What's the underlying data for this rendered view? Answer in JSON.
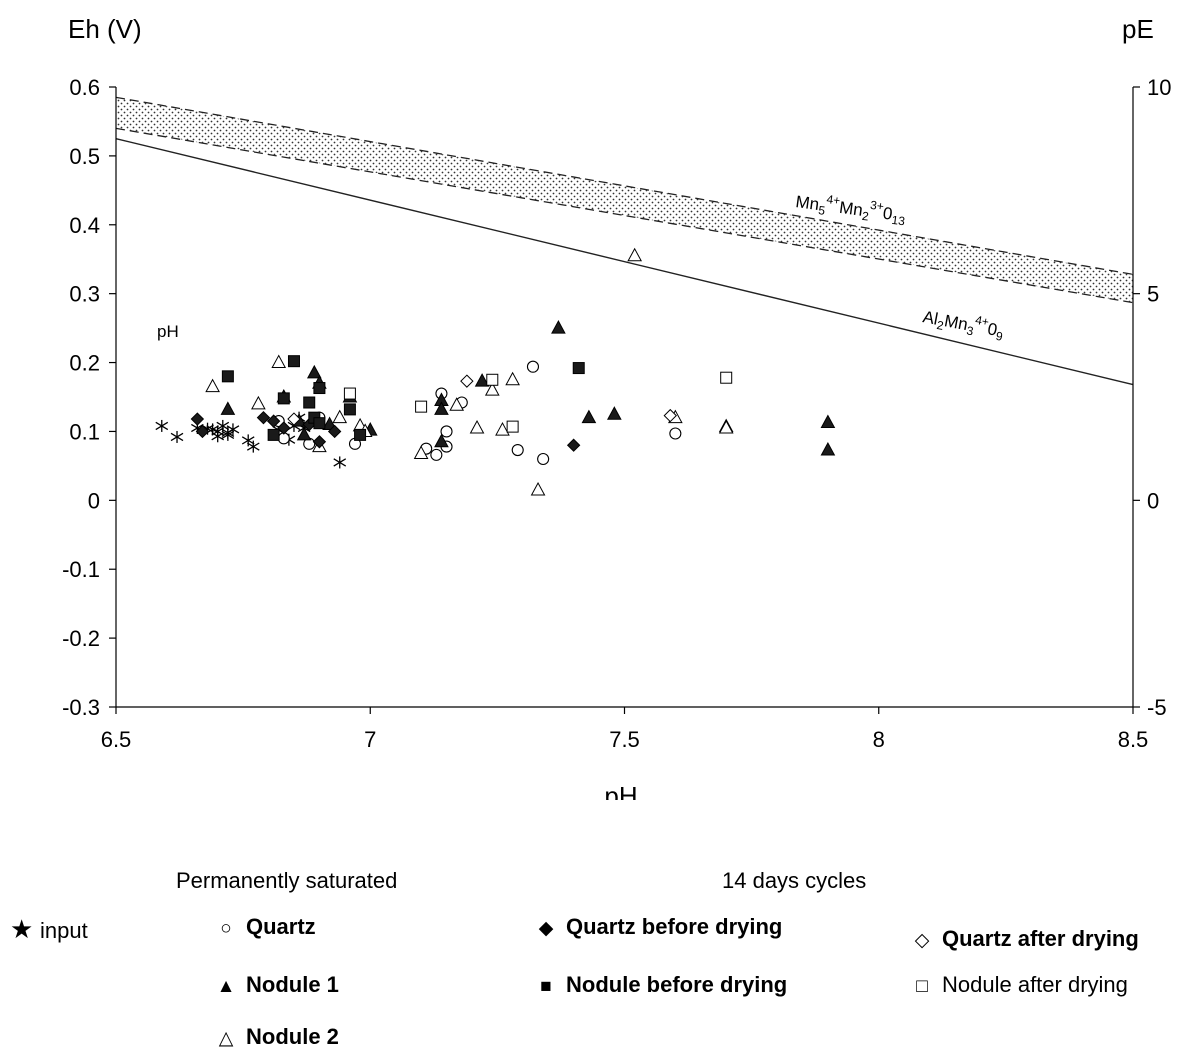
{
  "chart_data": {
    "type": "scatter",
    "xlabel": "pH",
    "ylabel_left": "Eh (V)",
    "ylabel_right": "pE",
    "xlim": [
      6.5,
      8.5
    ],
    "ylim": [
      -0.3,
      0.6
    ],
    "pe_lim": [
      -5,
      10
    ],
    "x_ticks": [
      "6.5",
      "7",
      "7.5",
      "8",
      "8.5"
    ],
    "y_ticks": [
      "-0.3",
      "-0.2",
      "-0.1",
      "0",
      "0.1",
      "0.2",
      "0.3",
      "0.4",
      "0.5",
      "0.6"
    ],
    "pe_ticks": [
      "-5",
      "0",
      "5",
      "10"
    ],
    "plot_annotation": "pH",
    "lines": [
      {
        "name": "Al2Mn3(4+)O9",
        "x": [
          6.5,
          8.5
        ],
        "y": [
          0.525,
          0.168
        ]
      },
      {
        "name": "Mn5(4+)Mn2(3+)O13 upper",
        "x": [
          6.5,
          8.5
        ],
        "y": [
          0.585,
          0.328
        ]
      },
      {
        "name": "Mn5(4+)Mn2(3+)O13 lower",
        "x": [
          6.5,
          8.5
        ],
        "y": [
          0.54,
          0.287
        ]
      }
    ],
    "line_labels": {
      "mn": {
        "a": "Mn",
        "s1": "5",
        "p1": "4+",
        "b": "Mn",
        "s2": "2",
        "p2": "3+",
        "c": "0",
        "s3": "13"
      },
      "al": {
        "a": "Al",
        "s1": "2",
        "b": "Mn",
        "s2": "3",
        "p2": "4+",
        "c": "0",
        "s3": "9"
      }
    },
    "series": [
      {
        "name": "input",
        "marker": "asterisk",
        "points": [
          [
            6.59,
            0.108
          ],
          [
            6.62,
            0.092
          ],
          [
            6.66,
            0.105
          ],
          [
            6.68,
            0.104
          ],
          [
            6.69,
            0.103
          ],
          [
            6.7,
            0.1
          ],
          [
            6.7,
            0.093
          ],
          [
            6.71,
            0.108
          ],
          [
            6.72,
            0.095
          ],
          [
            6.72,
            0.098
          ],
          [
            6.73,
            0.103
          ],
          [
            6.76,
            0.087
          ],
          [
            6.77,
            0.078
          ],
          [
            6.82,
            0.102
          ],
          [
            6.84,
            0.088
          ],
          [
            6.85,
            0.108
          ],
          [
            6.86,
            0.12
          ],
          [
            6.87,
            0.105
          ],
          [
            6.94,
            0.055
          ]
        ]
      },
      {
        "name": "Quartz",
        "marker": "circle-open",
        "points": [
          [
            6.82,
            0.115
          ],
          [
            6.83,
            0.09
          ],
          [
            6.88,
            0.082
          ],
          [
            6.9,
            0.12
          ],
          [
            6.97,
            0.082
          ],
          [
            7.11,
            0.075
          ],
          [
            7.13,
            0.066
          ],
          [
            7.14,
            0.155
          ],
          [
            7.15,
            0.1
          ],
          [
            7.15,
            0.078
          ],
          [
            7.18,
            0.142
          ],
          [
            7.29,
            0.073
          ],
          [
            7.32,
            0.194
          ],
          [
            7.34,
            0.06
          ],
          [
            7.6,
            0.097
          ]
        ]
      },
      {
        "name": "Nodule 1",
        "marker": "triangle-filled",
        "points": [
          [
            6.72,
            0.132
          ],
          [
            6.83,
            0.15
          ],
          [
            6.86,
            0.115
          ],
          [
            6.87,
            0.095
          ],
          [
            6.89,
            0.185
          ],
          [
            6.9,
            0.17
          ],
          [
            6.92,
            0.11
          ],
          [
            6.96,
            0.15
          ],
          [
            7.0,
            0.102
          ],
          [
            7.14,
            0.085
          ],
          [
            7.14,
            0.145
          ],
          [
            7.14,
            0.132
          ],
          [
            7.22,
            0.173
          ],
          [
            7.37,
            0.25
          ],
          [
            7.43,
            0.12
          ],
          [
            7.48,
            0.125
          ],
          [
            7.7,
            0.107
          ],
          [
            7.9,
            0.113
          ],
          [
            7.9,
            0.073
          ]
        ]
      },
      {
        "name": "Nodule 2",
        "marker": "triangle-open",
        "points": [
          [
            6.69,
            0.165
          ],
          [
            6.78,
            0.14
          ],
          [
            6.82,
            0.2
          ],
          [
            6.9,
            0.078
          ],
          [
            6.94,
            0.12
          ],
          [
            6.98,
            0.108
          ],
          [
            6.99,
            0.1
          ],
          [
            7.1,
            0.068
          ],
          [
            7.17,
            0.138
          ],
          [
            7.21,
            0.105
          ],
          [
            7.24,
            0.16
          ],
          [
            7.26,
            0.102
          ],
          [
            7.28,
            0.175
          ],
          [
            7.33,
            0.015
          ],
          [
            7.52,
            0.355
          ],
          [
            7.6,
            0.12
          ],
          [
            7.7,
            0.105
          ]
        ]
      },
      {
        "name": "Quartz before drying",
        "marker": "diamond-filled",
        "points": [
          [
            6.66,
            0.118
          ],
          [
            6.67,
            0.1
          ],
          [
            6.79,
            0.12
          ],
          [
            6.81,
            0.115
          ],
          [
            6.83,
            0.105
          ],
          [
            6.88,
            0.11
          ],
          [
            6.9,
            0.085
          ],
          [
            6.93,
            0.1
          ],
          [
            7.4,
            0.08
          ]
        ]
      },
      {
        "name": "Nodule before drying",
        "marker": "square-filled",
        "points": [
          [
            6.72,
            0.18
          ],
          [
            6.81,
            0.095
          ],
          [
            6.83,
            0.148
          ],
          [
            6.85,
            0.202
          ],
          [
            6.88,
            0.142
          ],
          [
            6.89,
            0.12
          ],
          [
            6.9,
            0.163
          ],
          [
            6.9,
            0.112
          ],
          [
            6.96,
            0.132
          ],
          [
            6.98,
            0.095
          ],
          [
            7.41,
            0.192
          ]
        ]
      },
      {
        "name": "Quartz after drying",
        "marker": "diamond-open",
        "points": [
          [
            6.85,
            0.118
          ],
          [
            7.19,
            0.173
          ],
          [
            7.59,
            0.123
          ]
        ]
      },
      {
        "name": "Nodule after drying",
        "marker": "square-open",
        "points": [
          [
            6.96,
            0.155
          ],
          [
            7.1,
            0.136
          ],
          [
            7.24,
            0.175
          ],
          [
            7.28,
            0.107
          ],
          [
            7.7,
            0.178
          ]
        ]
      }
    ]
  },
  "legend": {
    "group1_heading": "Permanently saturated",
    "group2_heading": "14 days cycles",
    "items": {
      "input": "input",
      "quartz": "Quartz",
      "nodule1": "Nodule 1",
      "nodule2": "Nodule 2",
      "quartz_before": "Quartz before drying",
      "nodule_before": "Nodule before drying",
      "quartz_after": "Quartz after drying",
      "nodule_after": "Nodule after drying"
    },
    "symbols": {
      "input": "★",
      "quartz": "○",
      "nodule1": "▲",
      "nodule2": "△",
      "quartz_before": "◆",
      "nodule_before": "■",
      "quartz_after": "◇",
      "nodule_after": "□"
    }
  }
}
